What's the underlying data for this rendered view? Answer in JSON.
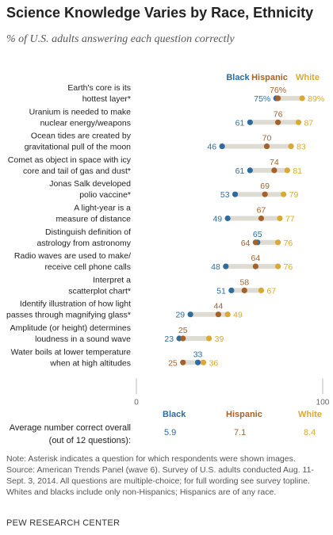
{
  "header": {
    "title": "Science Knowledge Varies by Race, Ethnicity",
    "subtitle": "% of U.S. adults answering each question correctly"
  },
  "colors": {
    "black": "#2e6b9e",
    "hispanic": "#a4622a",
    "white": "#d9a934",
    "bar": "#dedbd3",
    "axis": "#bbbbbb"
  },
  "chart_data": {
    "type": "dot",
    "legend": [
      "Black",
      "Hispanic",
      "White"
    ],
    "legend_placement": "top-right",
    "xlim": [
      0,
      100
    ],
    "xticks": [
      "0",
      "100"
    ],
    "categories": [
      [
        "Earth's core is its",
        "hottest layer*"
      ],
      [
        "Uranium is needed to make",
        "nuclear energy/weapons"
      ],
      [
        "Ocean tides are created by",
        "gravitational pull of the moon"
      ],
      [
        "Comet as object in space with icy",
        "core and tail of gas and dust*"
      ],
      [
        "Jonas Salk developed",
        "polio vaccine*"
      ],
      [
        "A light-year is a",
        "measure of distance"
      ],
      [
        "Distinguish definition of",
        "astrology from astronomy"
      ],
      [
        "Radio waves are used to make/",
        "receive cell phone calls"
      ],
      [
        "Interpret a",
        "scatterplot chart*"
      ],
      [
        "Identify illustration of how light",
        "passes through magnifying glass*"
      ],
      [
        "Amplitude (or height) determines",
        "loudness in a sound wave"
      ],
      [
        "Water boils at lower temperature",
        "when at high altitudes"
      ]
    ],
    "series": [
      {
        "name": "Black",
        "values": [
          75,
          61,
          46,
          61,
          53,
          49,
          65,
          48,
          51,
          29,
          23,
          33
        ]
      },
      {
        "name": "Hispanic",
        "values": [
          76,
          76,
          70,
          74,
          69,
          67,
          64,
          64,
          58,
          44,
          25,
          25
        ]
      },
      {
        "name": "White",
        "values": [
          89,
          87,
          83,
          81,
          79,
          77,
          76,
          76,
          67,
          49,
          39,
          36
        ]
      }
    ],
    "value_labels": [
      [
        "75%",
        "76%",
        "89%"
      ],
      [
        "61",
        "76",
        "87"
      ],
      [
        "46",
        "70",
        "83"
      ],
      [
        "61",
        "74",
        "81"
      ],
      [
        "53",
        "69",
        "79"
      ],
      [
        "49",
        "67",
        "77"
      ],
      [
        "65",
        "64",
        "76"
      ],
      [
        "48",
        "64",
        "76"
      ],
      [
        "51",
        "58",
        "67"
      ],
      [
        "29",
        "44",
        "49"
      ],
      [
        "23",
        "25",
        "39"
      ],
      [
        "33",
        "25",
        "36"
      ]
    ]
  },
  "summary": {
    "label_line1": "Average number correct overall",
    "label_line2": "(out of 12 questions):",
    "headers": [
      "Black",
      "Hispanic",
      "White"
    ],
    "values": [
      "5.9",
      "7.1",
      "8.4"
    ]
  },
  "footer": {
    "note": "Note: Asterisk indicates a question for which respondents were shown images.",
    "source": "Source: American Trends Panel (wave 6). Survey of U.S. adults conducted Aug. 11-Sept. 3, 2014. All questions are multiple-choice; for full wording see survey topline. Whites and blacks include only non-Hispanics; Hispanics are of any race.",
    "org": "PEW RESEARCH CENTER"
  }
}
